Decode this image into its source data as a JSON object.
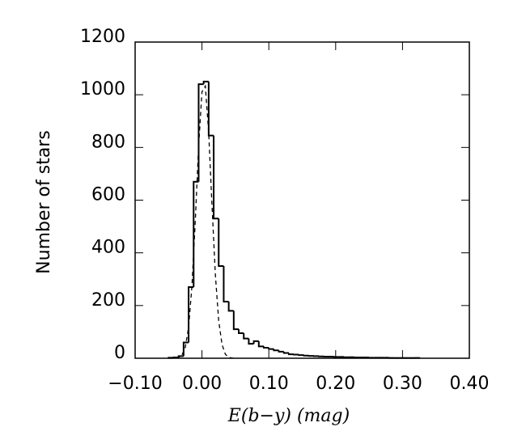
{
  "chart_data": {
    "type": "histogram",
    "xlabel": "E(b−y) (mag)",
    "ylabel": "Number of  stars",
    "bins": [
      -0.05,
      -0.0425,
      -0.035,
      -0.0275,
      -0.02,
      -0.0125,
      -0.005,
      0.0025,
      0.01,
      0.0175,
      0.025,
      0.0325,
      0.04,
      0.0475,
      0.055,
      0.0625,
      0.07,
      0.0775,
      0.085,
      0.0925,
      0.1,
      0.1075,
      0.115,
      0.1225,
      0.13,
      0.1375,
      0.145,
      0.1525,
      0.16,
      0.1675,
      0.175,
      0.1825,
      0.19,
      0.1975,
      0.205,
      0.2125,
      0.22,
      0.2275,
      0.235,
      0.2425,
      0.25,
      0.2575,
      0.265,
      0.2725,
      0.28,
      0.2875,
      0.295,
      0.3025,
      0.31,
      0.3175,
      0.325
    ],
    "values": [
      2,
      3,
      8,
      60,
      270,
      670,
      1040,
      1050,
      845,
      530,
      350,
      215,
      180,
      110,
      95,
      75,
      55,
      65,
      45,
      40,
      35,
      30,
      25,
      20,
      15,
      14,
      12,
      10,
      9,
      8,
      7,
      6,
      6,
      5,
      5,
      4,
      4,
      3,
      3,
      3,
      2,
      2,
      2,
      2,
      1,
      1,
      1,
      1,
      1,
      1
    ],
    "color": "#000000",
    "fit": {
      "x": [
        -0.05,
        -0.045,
        -0.04,
        -0.035,
        -0.03,
        -0.025,
        -0.02,
        -0.015,
        -0.01,
        -0.005,
        0,
        0.005,
        0.01,
        0.015,
        0.02,
        0.025,
        0.03,
        0.035,
        0.04,
        0.045,
        0.05
      ],
      "values": [
        0,
        0,
        0.5,
        2.7,
        11.7,
        41,
        118,
        275,
        522,
        806,
        1011,
        1033,
        858,
        579,
        318,
        142,
        52,
        15,
        3.7,
        0.7,
        0
      ],
      "color": "#000000",
      "dashed": true
    },
    "xlim": [
      -0.1,
      0.4
    ],
    "xticks": [
      {
        "value": -0.1,
        "label": "−0.10"
      },
      {
        "value": 0,
        "label": "0.00"
      },
      {
        "value": 0.1,
        "label": "0.10"
      },
      {
        "value": 0.2,
        "label": "0.20"
      },
      {
        "value": 0.3,
        "label": "0.30"
      },
      {
        "value": 0.4,
        "label": "0.40"
      }
    ],
    "ylim": [
      0,
      1200
    ],
    "yticks": [
      0,
      200,
      400,
      600,
      800,
      1000,
      1200
    ],
    "grid": false
  }
}
